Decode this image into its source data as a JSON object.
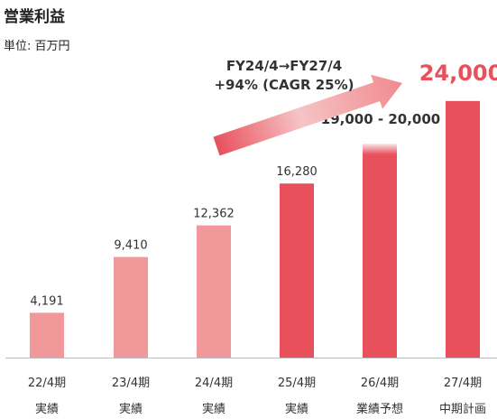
{
  "title": "営業利益",
  "unit": "単位: 百万円",
  "chart_data": {
    "type": "bar",
    "categories": [
      "22/4期",
      "23/4期",
      "24/4期",
      "25/4期",
      "26/4期",
      "27/4期"
    ],
    "category_sublabels": [
      "実績",
      "実績",
      "実績",
      "実績",
      "業績予想",
      "中期計画"
    ],
    "values": [
      4191,
      9410,
      12362,
      16280,
      20000,
      24000
    ],
    "value_labels": [
      "4,191",
      "9,410",
      "12,362",
      "16,280",
      "19,000 - 20,000",
      "24,000"
    ],
    "forecast_range": {
      "category": "26/4期",
      "low": 19000,
      "high": 20000
    },
    "ylim": [
      0,
      25000
    ],
    "grid": false,
    "colors": {
      "actual_past": "#f0989a",
      "actual_recent": "#e8505c",
      "plan": "#e8505c",
      "arrow": "#e8505c",
      "highlight_label": "#e8505c"
    },
    "bar_colors": [
      "#f0989a",
      "#f0989a",
      "#f0989a",
      "#e8505c",
      "#e8505c",
      "#e8505c"
    ],
    "annotation": {
      "line1": "FY24/4→FY27/4",
      "line2": "+94% (CAGR 25%)"
    }
  }
}
